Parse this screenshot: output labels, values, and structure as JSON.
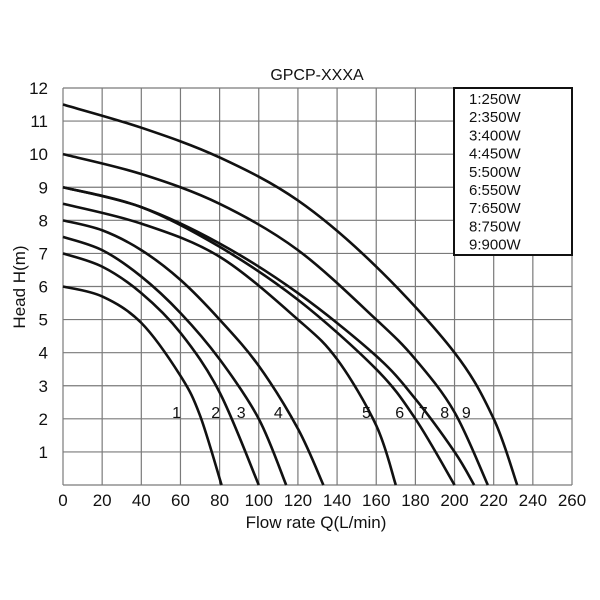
{
  "chart_data": {
    "type": "line",
    "title": "GPCP-XXXA",
    "xlabel": "Flow rate Q(L/min)",
    "ylabel": "Head H(m)",
    "xlim": [
      0,
      260
    ],
    "ylim": [
      0,
      12
    ],
    "xticks": [
      0,
      20,
      40,
      60,
      80,
      100,
      120,
      140,
      160,
      180,
      200,
      220,
      240,
      260
    ],
    "yticks": [
      1,
      2,
      3,
      4,
      5,
      6,
      7,
      8,
      9,
      10,
      11,
      12
    ],
    "grid": true,
    "legend_position": "top-right",
    "legend": [
      "1:250W",
      "2:350W",
      "3:400W",
      "4:450W",
      "5:500W",
      "6:550W",
      "7:650W",
      "8:750W",
      "9:900W"
    ],
    "series": [
      {
        "name": "1:250W",
        "label": "1",
        "label_pos": [
          58,
          2.2
        ],
        "points": [
          [
            0,
            6
          ],
          [
            20,
            5.7
          ],
          [
            40,
            4.9
          ],
          [
            60,
            3.3
          ],
          [
            70,
            2.1
          ],
          [
            81,
            0
          ]
        ]
      },
      {
        "name": "2:350W",
        "label": "2",
        "label_pos": [
          78,
          2.2
        ],
        "points": [
          [
            0,
            7
          ],
          [
            20,
            6.6
          ],
          [
            40,
            5.8
          ],
          [
            60,
            4.6
          ],
          [
            80,
            2.8
          ],
          [
            100,
            0
          ]
        ]
      },
      {
        "name": "3:400W",
        "label": "3",
        "label_pos": [
          91,
          2.2
        ],
        "points": [
          [
            0,
            7.5
          ],
          [
            20,
            7.1
          ],
          [
            40,
            6.3
          ],
          [
            60,
            5.2
          ],
          [
            80,
            3.8
          ],
          [
            100,
            2
          ],
          [
            114,
            0
          ]
        ]
      },
      {
        "name": "4:450W",
        "label": "4",
        "label_pos": [
          110,
          2.2
        ],
        "points": [
          [
            0,
            8
          ],
          [
            20,
            7.7
          ],
          [
            40,
            7.1
          ],
          [
            60,
            6.2
          ],
          [
            80,
            5
          ],
          [
            100,
            3.6
          ],
          [
            120,
            1.7
          ],
          [
            133,
            0
          ]
        ]
      },
      {
        "name": "5:500W",
        "label": "5",
        "label_pos": [
          155,
          2.2
        ],
        "points": [
          [
            0,
            8.5
          ],
          [
            40,
            7.9
          ],
          [
            80,
            6.9
          ],
          [
            120,
            5
          ],
          [
            140,
            3.8
          ],
          [
            160,
            1.8
          ],
          [
            170,
            0
          ]
        ]
      },
      {
        "name": "6:550W",
        "label": "6",
        "label_pos": [
          172,
          2.2
        ],
        "points": [
          [
            0,
            9
          ],
          [
            40,
            8.4
          ],
          [
            80,
            7.2
          ],
          [
            120,
            5.6
          ],
          [
            160,
            3.5
          ],
          [
            180,
            2
          ],
          [
            200,
            0
          ]
        ]
      },
      {
        "name": "7:650W",
        "label": "7",
        "label_pos": [
          184,
          2.2
        ],
        "points": [
          [
            0,
            9
          ],
          [
            40,
            8.4
          ],
          [
            80,
            7.3
          ],
          [
            120,
            5.8
          ],
          [
            160,
            3.9
          ],
          [
            180,
            2.6
          ],
          [
            200,
            1
          ],
          [
            210,
            0
          ]
        ]
      },
      {
        "name": "8:750W",
        "label": "8",
        "label_pos": [
          195,
          2.2
        ],
        "points": [
          [
            0,
            10
          ],
          [
            40,
            9.4
          ],
          [
            80,
            8.5
          ],
          [
            120,
            7.1
          ],
          [
            160,
            5
          ],
          [
            180,
            3.8
          ],
          [
            200,
            2.2
          ],
          [
            217,
            0
          ]
        ]
      },
      {
        "name": "9:900W",
        "label": "9",
        "label_pos": [
          206,
          2.2
        ],
        "points": [
          [
            0,
            11.5
          ],
          [
            40,
            10.8
          ],
          [
            80,
            9.9
          ],
          [
            120,
            8.6
          ],
          [
            160,
            6.6
          ],
          [
            200,
            4
          ],
          [
            220,
            2
          ],
          [
            232,
            0
          ]
        ]
      }
    ]
  }
}
